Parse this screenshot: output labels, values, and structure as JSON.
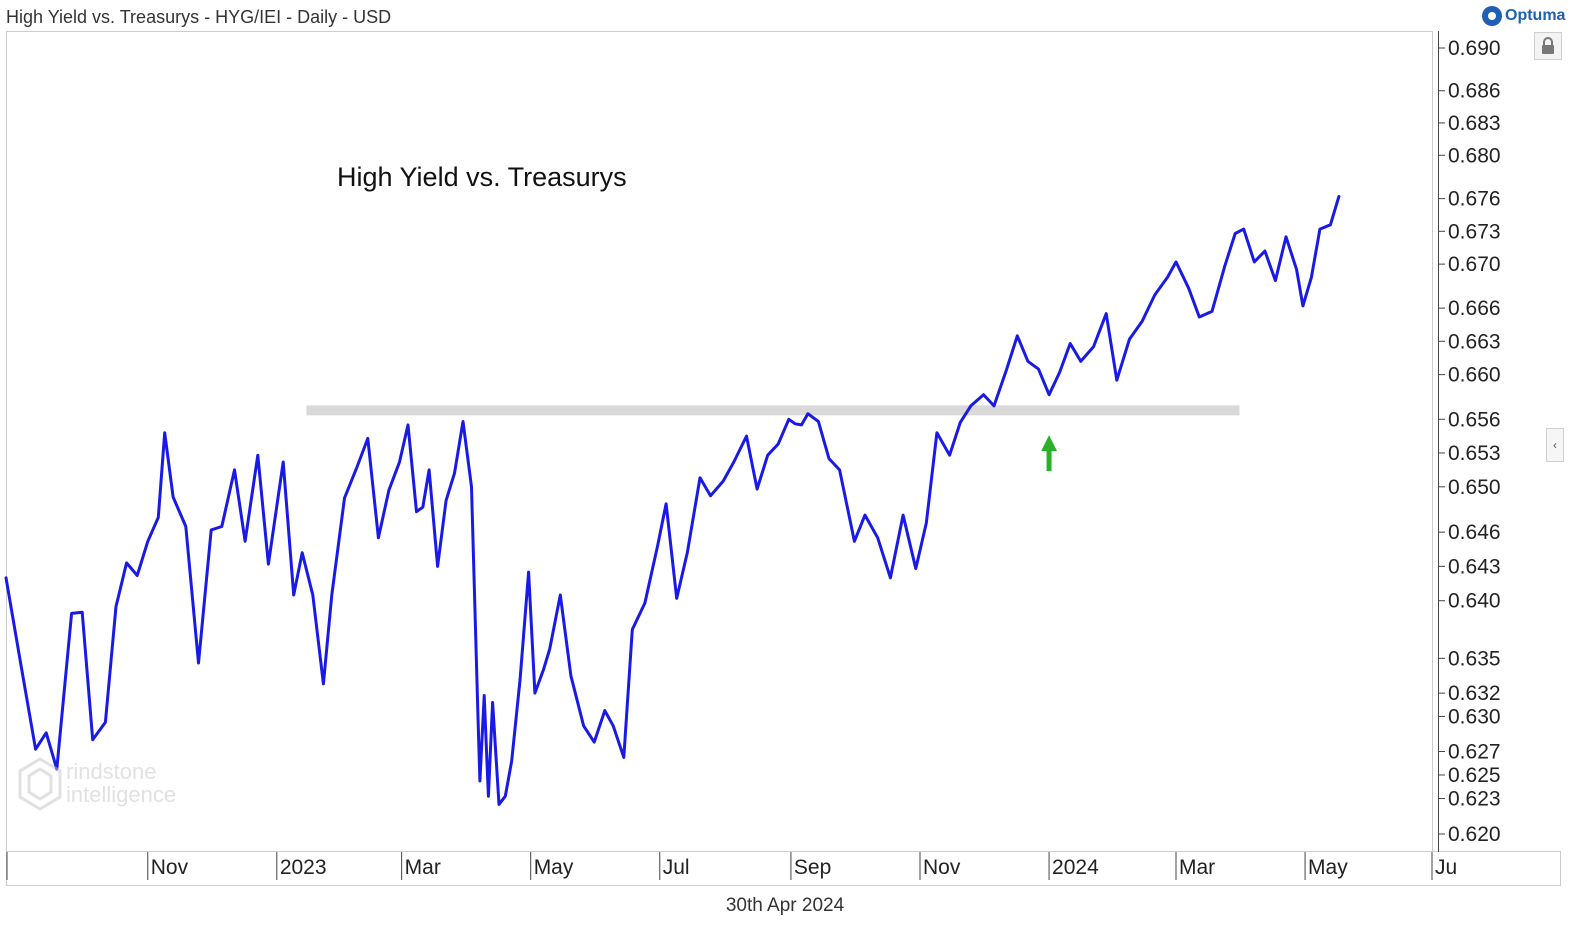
{
  "header": {
    "title": "High Yield vs. Treasurys - HYG/IEI - Daily - USD",
    "brand": "Optuma"
  },
  "footer": {
    "date": "30th Apr 2024"
  },
  "watermark": {
    "line1": "rindstone",
    "line2": "intelligence"
  },
  "colors": {
    "series": "#1a1ae6",
    "band": "#d9d9d9",
    "arrow": "#2bb02b",
    "axis": "#333333"
  },
  "icons": {
    "lock": "lock-icon",
    "collapse": "chevron-left-icon",
    "brand": "optuma-logo-icon",
    "watermark": "hexagon-g-icon"
  },
  "chart_data": {
    "type": "line",
    "title": "High Yield vs. Treasurys",
    "xlabel": "",
    "ylabel": "",
    "ylim": [
      0.618,
      0.692
    ],
    "y_scale": "log",
    "xlim": [
      "2022-08-26",
      "2024-06-30"
    ],
    "grid": false,
    "y_ticks": [
      "0.690",
      "0.686",
      "0.683",
      "0.680",
      "0.676",
      "0.673",
      "0.670",
      "0.666",
      "0.663",
      "0.660",
      "0.656",
      "0.653",
      "0.650",
      "0.646",
      "0.643",
      "0.640",
      "0.635",
      "0.632",
      "0.630",
      "0.627",
      "0.625",
      "0.623",
      "0.620"
    ],
    "x_ticks": [
      {
        "label": "Nov",
        "date": "2022-11-01"
      },
      {
        "label": "2023",
        "date": "2023-01-01"
      },
      {
        "label": "Mar",
        "date": "2023-03-01"
      },
      {
        "label": "May",
        "date": "2023-05-01"
      },
      {
        "label": "Jul",
        "date": "2023-07-01"
      },
      {
        "label": "Sep",
        "date": "2023-09-01"
      },
      {
        "label": "Nov",
        "date": "2023-11-01"
      },
      {
        "label": "2024",
        "date": "2024-01-01"
      },
      {
        "label": "Mar",
        "date": "2024-03-01"
      },
      {
        "label": "May",
        "date": "2024-05-01"
      },
      {
        "label": "Ju",
        "date": "2024-06-30"
      }
    ],
    "series": [
      {
        "values": [
          [
            "2022-08-26",
            0.642
          ],
          [
            "2022-09-02",
            0.6345
          ],
          [
            "2022-09-09",
            0.6272
          ],
          [
            "2022-09-14",
            0.6286
          ],
          [
            "2022-09-19",
            0.6255
          ],
          [
            "2022-09-26",
            0.6389
          ],
          [
            "2022-10-01",
            0.639
          ],
          [
            "2022-10-06",
            0.628
          ],
          [
            "2022-10-12",
            0.6295
          ],
          [
            "2022-10-17",
            0.6395
          ],
          [
            "2022-10-22",
            0.6433
          ],
          [
            "2022-10-27",
            0.6422
          ],
          [
            "2022-11-01",
            0.6452
          ],
          [
            "2022-11-06",
            0.6473
          ],
          [
            "2022-11-09",
            0.6548
          ],
          [
            "2022-11-13",
            0.6491
          ],
          [
            "2022-11-19",
            0.6465
          ],
          [
            "2022-11-25",
            0.6346
          ],
          [
            "2022-12-01",
            0.6462
          ],
          [
            "2022-12-06",
            0.6465
          ],
          [
            "2022-12-12",
            0.6515
          ],
          [
            "2022-12-17",
            0.6452
          ],
          [
            "2022-12-23",
            0.6528
          ],
          [
            "2022-12-28",
            0.6432
          ],
          [
            "2023-01-04",
            0.6522
          ],
          [
            "2023-01-09",
            0.6405
          ],
          [
            "2023-01-13",
            0.6442
          ],
          [
            "2023-01-18",
            0.6405
          ],
          [
            "2023-01-23",
            0.6328
          ],
          [
            "2023-01-27",
            0.6405
          ],
          [
            "2023-02-02",
            0.649
          ],
          [
            "2023-02-08",
            0.6518
          ],
          [
            "2023-02-13",
            0.6543
          ],
          [
            "2023-02-18",
            0.6455
          ],
          [
            "2023-02-23",
            0.6497
          ],
          [
            "2023-02-28",
            0.6522
          ],
          [
            "2023-03-04",
            0.6555
          ],
          [
            "2023-03-08",
            0.6478
          ],
          [
            "2023-03-11",
            0.6482
          ],
          [
            "2023-03-14",
            0.6515
          ],
          [
            "2023-03-18",
            0.643
          ],
          [
            "2023-03-22",
            0.6488
          ],
          [
            "2023-03-26",
            0.6512
          ],
          [
            "2023-03-30",
            0.6558
          ],
          [
            "2023-04-03",
            0.65
          ],
          [
            "2023-04-06",
            0.6305
          ],
          [
            "2023-04-07",
            0.6245
          ],
          [
            "2023-04-09",
            0.6318
          ],
          [
            "2023-04-11",
            0.6232
          ],
          [
            "2023-04-13",
            0.6312
          ],
          [
            "2023-04-16",
            0.6225
          ],
          [
            "2023-04-19",
            0.6232
          ],
          [
            "2023-04-22",
            0.6262
          ],
          [
            "2023-04-26",
            0.6332
          ],
          [
            "2023-04-30",
            0.6425
          ],
          [
            "2023-05-03",
            0.632
          ],
          [
            "2023-05-07",
            0.634
          ],
          [
            "2023-05-10",
            0.6358
          ],
          [
            "2023-05-15",
            0.6405
          ],
          [
            "2023-05-20",
            0.6335
          ],
          [
            "2023-05-26",
            0.6292
          ],
          [
            "2023-05-31",
            0.6278
          ],
          [
            "2023-06-05",
            0.6305
          ],
          [
            "2023-06-09",
            0.6292
          ],
          [
            "2023-06-14",
            0.6265
          ],
          [
            "2023-06-18",
            0.6375
          ],
          [
            "2023-06-24",
            0.6398
          ],
          [
            "2023-06-30",
            0.6448
          ],
          [
            "2023-07-04",
            0.6485
          ],
          [
            "2023-07-09",
            0.6402
          ],
          [
            "2023-07-14",
            0.6442
          ],
          [
            "2023-07-20",
            0.6508
          ],
          [
            "2023-07-25",
            0.6492
          ],
          [
            "2023-07-31",
            0.6505
          ],
          [
            "2023-08-05",
            0.6522
          ],
          [
            "2023-08-11",
            0.6545
          ],
          [
            "2023-08-16",
            0.6498
          ],
          [
            "2023-08-21",
            0.6528
          ],
          [
            "2023-08-26",
            0.6538
          ],
          [
            "2023-08-31",
            0.656
          ],
          [
            "2023-09-03",
            0.6556
          ],
          [
            "2023-09-06",
            0.6555
          ],
          [
            "2023-09-09",
            0.6565
          ],
          [
            "2023-09-14",
            0.6558
          ],
          [
            "2023-09-19",
            0.6525
          ],
          [
            "2023-09-24",
            0.6515
          ],
          [
            "2023-10-01",
            0.6452
          ],
          [
            "2023-10-06",
            0.6475
          ],
          [
            "2023-10-12",
            0.6455
          ],
          [
            "2023-10-18",
            0.642
          ],
          [
            "2023-10-24",
            0.6475
          ],
          [
            "2023-10-30",
            0.6428
          ],
          [
            "2023-11-04",
            0.6468
          ],
          [
            "2023-11-09",
            0.6548
          ],
          [
            "2023-11-15",
            0.6528
          ],
          [
            "2023-11-20",
            0.6557
          ],
          [
            "2023-11-25",
            0.6572
          ],
          [
            "2023-12-01",
            0.6582
          ],
          [
            "2023-12-06",
            0.6572
          ],
          [
            "2023-12-12",
            0.6605
          ],
          [
            "2023-12-17",
            0.6635
          ],
          [
            "2023-12-22",
            0.6612
          ],
          [
            "2023-12-27",
            0.6605
          ],
          [
            "2024-01-01",
            0.6582
          ],
          [
            "2024-01-06",
            0.6602
          ],
          [
            "2024-01-11",
            0.6628
          ],
          [
            "2024-01-16",
            0.6612
          ],
          [
            "2024-01-22",
            0.6625
          ],
          [
            "2024-01-28",
            0.6655
          ],
          [
            "2024-02-02",
            0.6595
          ],
          [
            "2024-02-08",
            0.6632
          ],
          [
            "2024-02-14",
            0.6648
          ],
          [
            "2024-02-20",
            0.6672
          ],
          [
            "2024-02-26",
            0.6688
          ],
          [
            "2024-03-01",
            0.6702
          ],
          [
            "2024-03-07",
            0.6678
          ],
          [
            "2024-03-12",
            0.6652
          ],
          [
            "2024-03-18",
            0.6657
          ],
          [
            "2024-03-24",
            0.6698
          ],
          [
            "2024-03-29",
            0.6728
          ],
          [
            "2024-04-02",
            0.6732
          ],
          [
            "2024-04-07",
            0.6702
          ],
          [
            "2024-04-12",
            0.6712
          ],
          [
            "2024-04-17",
            0.6685
          ],
          [
            "2024-04-22",
            0.6725
          ],
          [
            "2024-04-27",
            0.6695
          ],
          [
            "2024-04-30",
            0.6662
          ],
          [
            "2024-05-04",
            0.6688
          ],
          [
            "2024-05-08",
            0.6732
          ],
          [
            "2024-05-13",
            0.6736
          ],
          [
            "2024-05-17",
            0.6762
          ]
        ]
      }
    ],
    "annotations": [
      {
        "type": "resistance-band",
        "y": 0.6568,
        "x_start": "2023-01-15",
        "x_end": "2024-03-31"
      },
      {
        "type": "arrow-up",
        "x": "2024-01-01",
        "y": 0.6553
      }
    ]
  }
}
